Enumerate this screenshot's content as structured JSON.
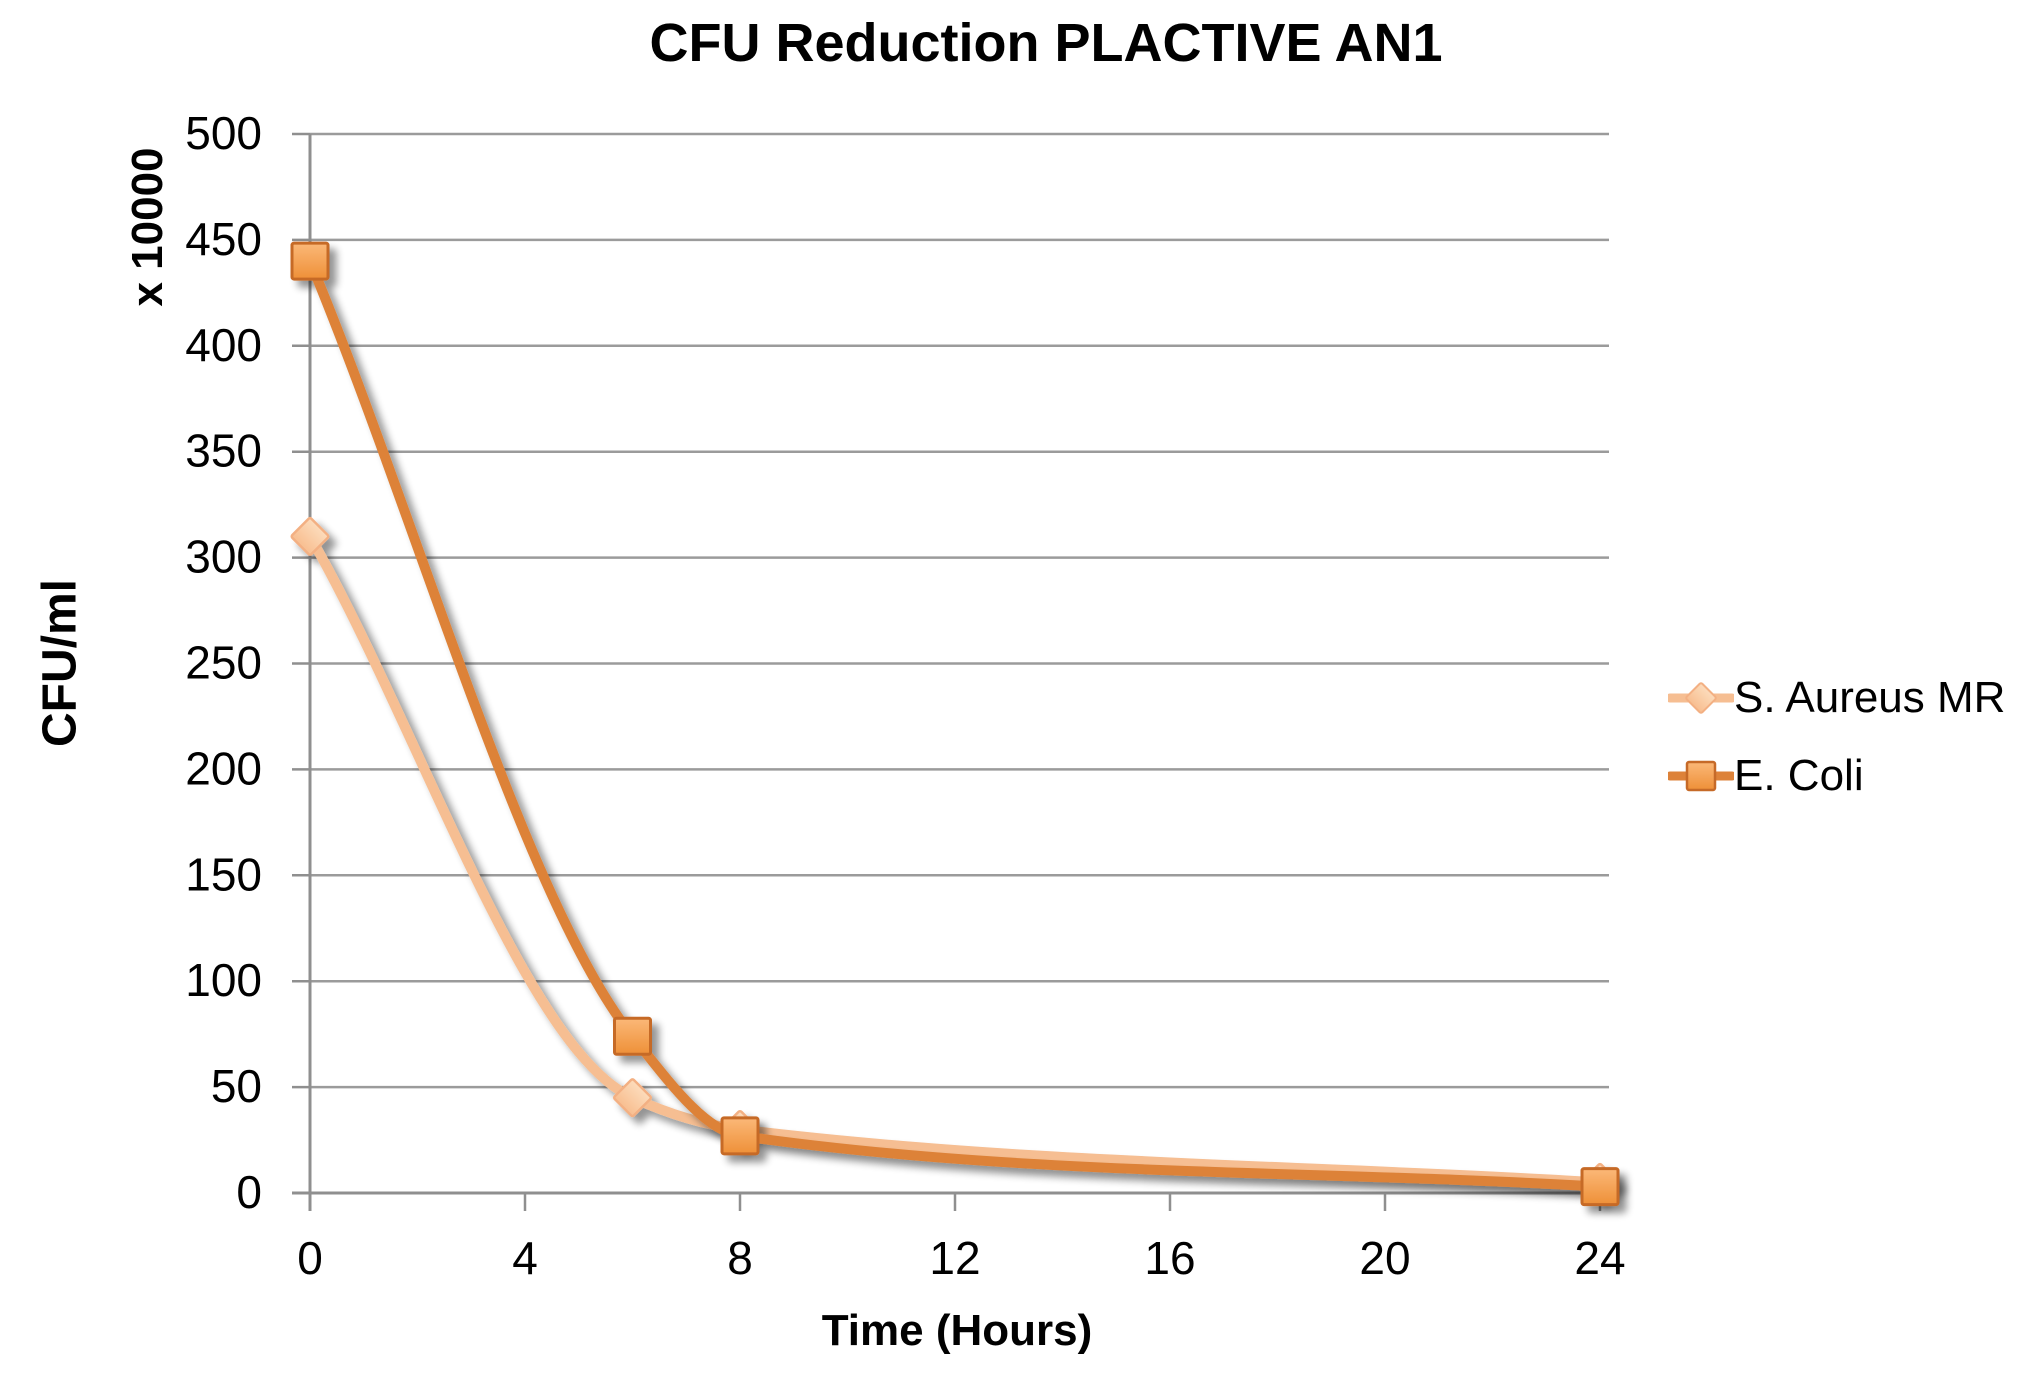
{
  "chart_data": {
    "type": "line",
    "title": "CFU Reduction PLACTIVE AN1",
    "xlabel": "Time (Hours)",
    "ylabel": "CFU/ml",
    "y_multiplier_label": "x 10000",
    "xlim": [
      0,
      24
    ],
    "ylim": [
      0,
      500
    ],
    "x_ticks": [
      0,
      4,
      8,
      12,
      16,
      20,
      24
    ],
    "y_ticks": [
      0,
      50,
      100,
      150,
      200,
      250,
      300,
      350,
      400,
      450,
      500
    ],
    "grid": true,
    "smooth_lines": true,
    "legend_position": "right",
    "x": [
      0,
      6,
      8,
      24
    ],
    "series": [
      {
        "name": "S. Aureus MR",
        "values": [
          310,
          45,
          30,
          5
        ],
        "marker": "diamond",
        "line_color": "#F6BE92",
        "marker_fill_top": "#FCDCBC",
        "marker_fill_bottom": "#F8BE90",
        "marker_border": "#F3B083"
      },
      {
        "name": "E. Coli",
        "values": [
          440,
          74,
          27,
          3
        ],
        "marker": "square",
        "line_color": "#DD8239",
        "marker_fill_top": "#FBB878",
        "marker_fill_bottom": "#EE9038",
        "marker_border": "#C66A28"
      }
    ]
  },
  "colors": {
    "background": "#FFFFFF",
    "gridline": "#9B9B9B",
    "axis": "#8F8F8F",
    "text": "#000000"
  }
}
